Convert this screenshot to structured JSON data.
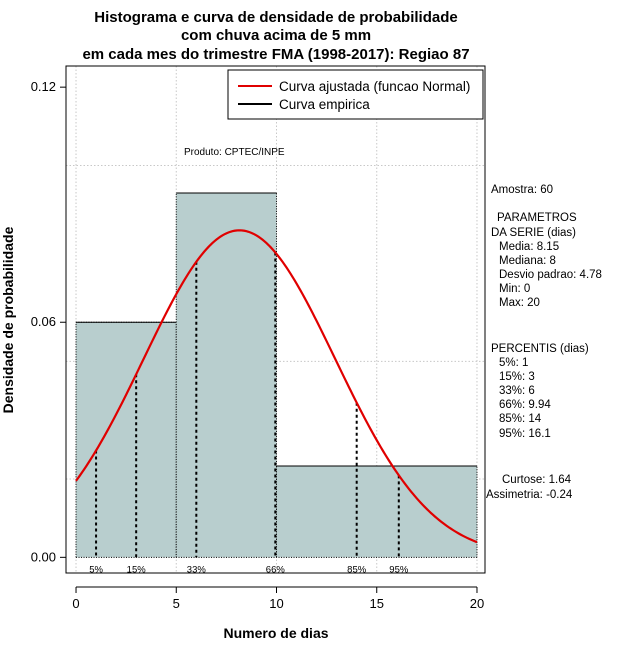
{
  "chart_data": {
    "type": "histogram",
    "title_lines": [
      "Histograma e curva de densidade de probabilidade",
      "com chuva acima de 5 mm",
      "em cada mes do trimestre FMA (1998-2017): Regiao 87"
    ],
    "xlabel": "Numero de dias",
    "ylabel": "Densidade de probabilidade",
    "xlim": [
      -0.5,
      20.4
    ],
    "ylim": [
      -0.004,
      0.1254
    ],
    "x_ticks": [
      0,
      5,
      10,
      15,
      20
    ],
    "y_ticks": [
      0.0,
      0.06,
      0.12
    ],
    "y_tick_labels": [
      "0.00",
      "0.06",
      "0.12"
    ],
    "x_grid": [
      0,
      5,
      10,
      15,
      20
    ],
    "y_grid": [
      0.02,
      0.05,
      0.1
    ],
    "bins": [
      {
        "start": 0,
        "end": 5,
        "density": 0.06
      },
      {
        "start": 5,
        "end": 10,
        "density": 0.093
      },
      {
        "start": 10,
        "end": 20,
        "density": 0.0233
      }
    ],
    "bar_color": "#b8cece",
    "curve_color": "#e00000",
    "normal_curve": {
      "mean": 8.15,
      "sd": 4.78,
      "x_start": 0,
      "x_end": 20
    },
    "percentile_lines": [
      {
        "x": 1,
        "label": "5%"
      },
      {
        "x": 3,
        "label": "15%"
      },
      {
        "x": 6,
        "label": "33%"
      },
      {
        "x": 9.94,
        "label": "66%"
      },
      {
        "x": 14,
        "label": "85%"
      },
      {
        "x": 16.1,
        "label": "95%"
      }
    ],
    "legend": [
      {
        "label": "Curva ajustada (funcao Normal)",
        "color": "#e00000"
      },
      {
        "label": "Curva empirica",
        "color": "#000000"
      }
    ],
    "product_label": "Produto: CPTEC/INPE"
  },
  "side_panel": {
    "sample": "Amostra: 60",
    "params_title_1": "PARAMETROS",
    "params_title_2": "DA SERIE (dias)",
    "params": [
      "Media: 8.15",
      "Mediana: 8",
      "Desvio padrao: 4.78",
      "Min: 0",
      "Max: 20"
    ],
    "percentiles_title": "PERCENTIS (dias)",
    "percentiles": [
      "5%: 1",
      "15%: 3",
      "33%: 6",
      "66%: 9.94",
      "85%: 14",
      "95%: 16.1"
    ],
    "kurtosis": "Curtose: 1.64",
    "skewness": "Assimetria: -0.24"
  }
}
